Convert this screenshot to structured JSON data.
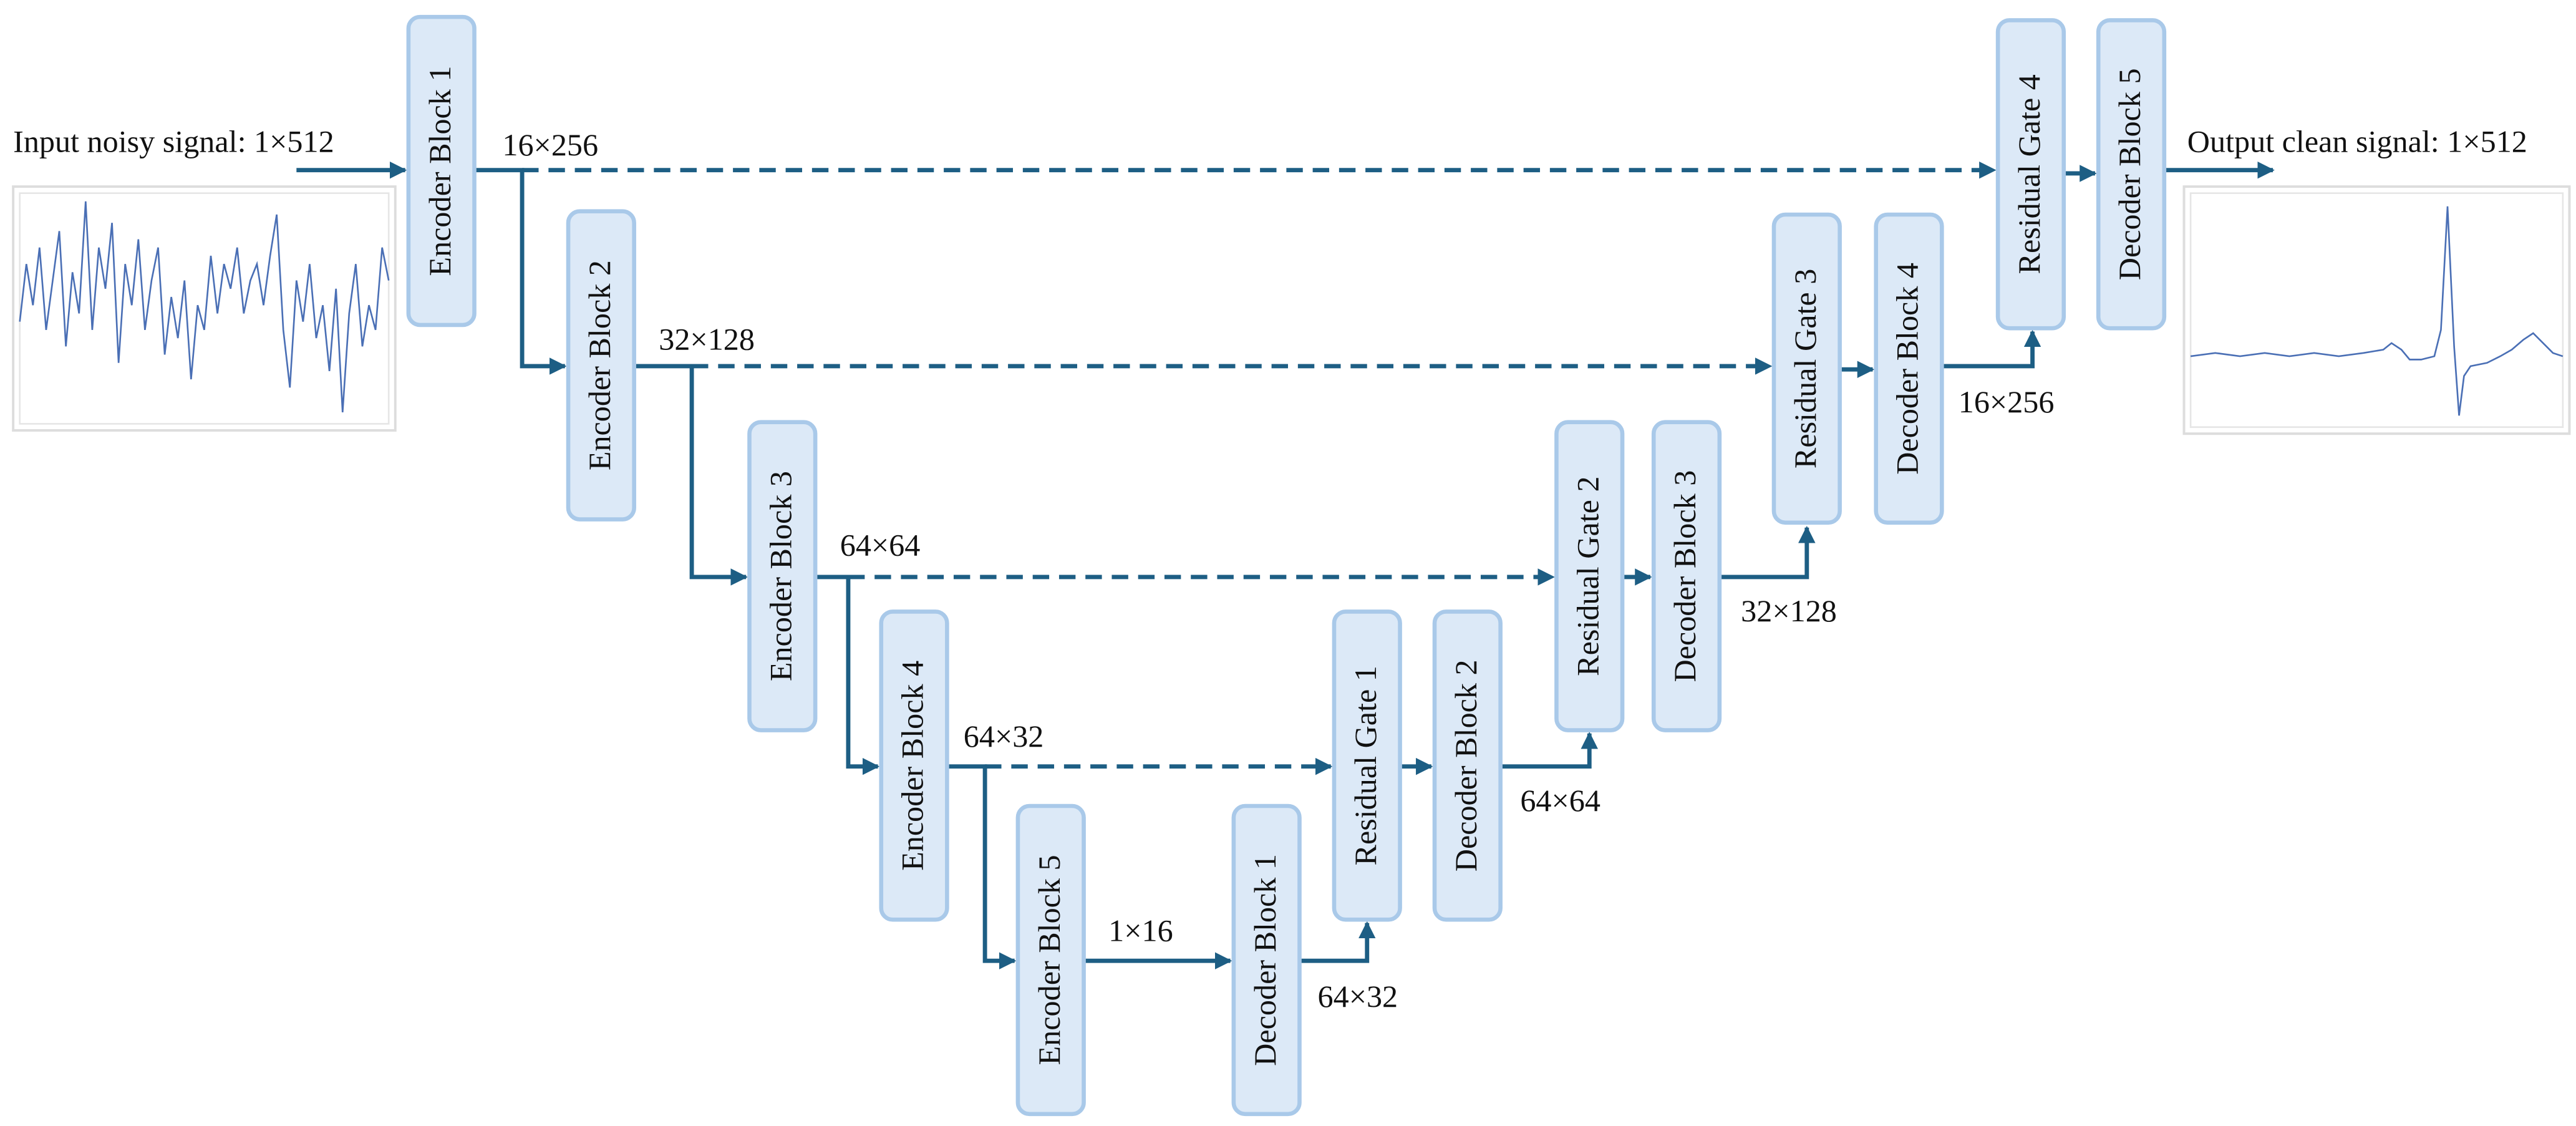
{
  "input_label": "Input noisy signal: 1×512",
  "output_label": "Output clean signal: 1×512",
  "nodes": [
    {
      "label": "Encoder Block 1"
    },
    {
      "label": "Encoder Block 2"
    },
    {
      "label": "Encoder Block 3"
    },
    {
      "label": "Encoder Block 4"
    },
    {
      "label": "Encoder Block 5"
    },
    {
      "label": "Decoder Block 1"
    },
    {
      "label": "Residual Gate 1"
    },
    {
      "label": "Decoder Block 2"
    },
    {
      "label": "Residual Gate 2"
    },
    {
      "label": "Decoder Block 3"
    },
    {
      "label": "Residual Gate 3"
    },
    {
      "label": "Decoder Block 4"
    },
    {
      "label": "Residual Gate 4"
    },
    {
      "label": "Decoder Block 5"
    }
  ],
  "edge_labels": [
    "16×256",
    "32×128",
    "64×64",
    "64×32",
    "1×16",
    "64×32",
    "64×64",
    "32×128",
    "16×256"
  ]
}
